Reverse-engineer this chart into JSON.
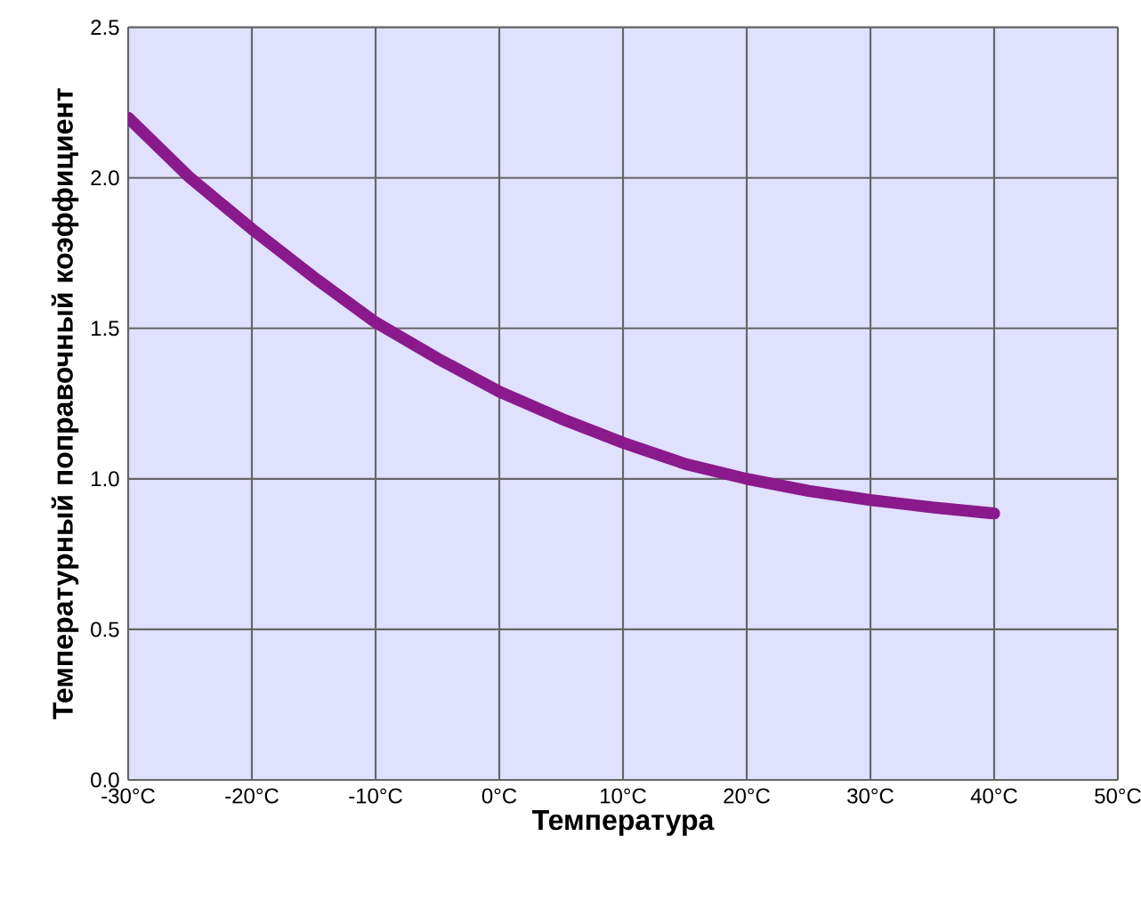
{
  "chart_data": {
    "type": "line",
    "xlabel": "Температура",
    "ylabel": "Температурный поправочный коэффициент",
    "x": [
      -30,
      -25,
      -20,
      -15,
      -10,
      -5,
      0,
      5,
      10,
      15,
      20,
      25,
      30,
      35,
      40
    ],
    "series": [
      {
        "color": "#8a1a8c",
        "values": [
          2.2,
          2.0,
          1.83,
          1.67,
          1.52,
          1.4,
          1.29,
          1.2,
          1.12,
          1.05,
          1.0,
          0.96,
          0.93,
          0.905,
          0.885
        ]
      }
    ],
    "xlim": [
      -30,
      50
    ],
    "ylim": [
      0,
      2.5
    ],
    "xticks": [
      {
        "value": -30,
        "label": "-30°C"
      },
      {
        "value": -20,
        "label": "-20°C"
      },
      {
        "value": -10,
        "label": "-10°C"
      },
      {
        "value": 0,
        "label": "0°C"
      },
      {
        "value": 10,
        "label": "10°C"
      },
      {
        "value": 20,
        "label": "20°C"
      },
      {
        "value": 30,
        "label": "30°C"
      },
      {
        "value": 40,
        "label": "40°C"
      },
      {
        "value": 50,
        "label": "50°C"
      }
    ],
    "yticks": [
      {
        "value": 0,
        "label": "0.0"
      },
      {
        "value": 0.5,
        "label": "0.5"
      },
      {
        "value": 1,
        "label": "1.0"
      },
      {
        "value": 1.5,
        "label": "1.5"
      },
      {
        "value": 2,
        "label": "2.0"
      },
      {
        "value": 2.5,
        "label": "2.5"
      }
    ],
    "grid": true,
    "marker": "none",
    "line_style": "solid"
  }
}
